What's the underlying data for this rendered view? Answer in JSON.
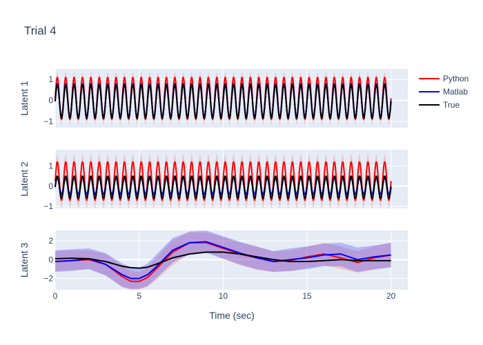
{
  "chart_data": {
    "type": "line",
    "title": "Trial 4",
    "xlabel": "Time (sec)",
    "xlim": [
      0,
      21
    ],
    "xticks": [
      0,
      5,
      10,
      15,
      20
    ],
    "legend": {
      "placement": "top-right",
      "entries": [
        {
          "name": "Python",
          "color": "#ff0000"
        },
        {
          "name": "Matlab",
          "color": "#0000ff"
        },
        {
          "name": "True",
          "color": "#000000"
        }
      ]
    },
    "colors": {
      "plot_bg": "#e5ecf6",
      "grid": "#ffffff",
      "python_band": "rgba(255,0,0,0.15)",
      "matlab_band": "rgba(0,0,255,0.22)"
    },
    "subplots": [
      {
        "ylabel": "Latent 1",
        "ylim": [
          -1.3,
          1.5
        ],
        "yticks": [
          -1,
          0,
          1
        ],
        "x_range": [
          0,
          20
        ],
        "series": [
          {
            "name": "Python",
            "kind": "sinusoid",
            "frequency_hz": 2.0,
            "amplitude": 1.0,
            "offset": 0.1,
            "band": 0.25
          },
          {
            "name": "Matlab",
            "kind": "sinusoid",
            "frequency_hz": 2.0,
            "amplitude": 0.8,
            "offset": 0.0
          },
          {
            "name": "True",
            "kind": "sinusoid",
            "frequency_hz": 2.0,
            "amplitude": 0.8,
            "offset": -0.05
          }
        ]
      },
      {
        "ylabel": "Latent 2",
        "ylim": [
          -1.1,
          1.8
        ],
        "yticks": [
          -1,
          0,
          1
        ],
        "x_range": [
          0,
          20
        ],
        "series": [
          {
            "name": "Python",
            "kind": "sinusoid",
            "frequency_hz": 2.0,
            "amplitude": 0.95,
            "offset": 0.25,
            "band": 0.4
          },
          {
            "name": "Matlab",
            "kind": "sinusoid",
            "frequency_hz": 2.0,
            "amplitude": 0.4,
            "offset": 0.0
          },
          {
            "name": "True",
            "kind": "sinusoid",
            "frequency_hz": 2.0,
            "amplitude": 0.55,
            "offset": -0.05
          }
        ]
      },
      {
        "ylabel": "Latent 3",
        "ylim": [
          -3.2,
          3.1
        ],
        "yticks": [
          -2,
          0,
          2
        ],
        "x": [
          0,
          1,
          2,
          3,
          4,
          4.5,
          5,
          5.5,
          6,
          7,
          8,
          9,
          10,
          11,
          12,
          13,
          14,
          15,
          16,
          17,
          18,
          19,
          20
        ],
        "series": [
          {
            "name": "Python",
            "values": [
              -0.2,
              -0.1,
              0.0,
              -0.5,
              -1.8,
              -2.3,
              -2.3,
              -1.9,
              -1.0,
              0.8,
              1.8,
              1.8,
              1.2,
              0.6,
              0.2,
              -0.2,
              -0.1,
              0.3,
              0.6,
              0.2,
              -0.3,
              0.2,
              0.5
            ],
            "band_low": [
              -1.2,
              -1.1,
              -1.0,
              -1.6,
              -2.9,
              -3.2,
              -3.2,
              -2.9,
              -2.2,
              -0.6,
              0.6,
              0.9,
              0.1,
              -0.6,
              -1.1,
              -1.3,
              -1.2,
              -0.9,
              -0.6,
              -1.0,
              -1.4,
              -1.1,
              -0.8
            ],
            "band_high": [
              0.9,
              1.0,
              1.0,
              0.6,
              -0.6,
              -1.2,
              -1.3,
              -0.8,
              0.2,
              2.1,
              2.9,
              2.9,
              2.4,
              1.8,
              1.4,
              0.9,
              1.0,
              1.4,
              1.8,
              1.4,
              0.9,
              1.4,
              1.8
            ]
          },
          {
            "name": "Matlab",
            "values": [
              -0.2,
              -0.1,
              0.1,
              -0.5,
              -1.6,
              -2.0,
              -2.0,
              -1.6,
              -0.8,
              1.0,
              1.8,
              1.9,
              1.3,
              0.7,
              0.2,
              -0.2,
              0.0,
              0.2,
              0.5,
              0.6,
              0.0,
              0.3,
              0.5
            ],
            "band_low": [
              -1.3,
              -1.2,
              -1.0,
              -1.7,
              -2.9,
              -3.1,
              -3.1,
              -2.8,
              -2.0,
              -0.3,
              0.6,
              0.7,
              0.1,
              -0.5,
              -1.0,
              -1.3,
              -1.2,
              -1.0,
              -0.7,
              -0.7,
              -1.3,
              -1.0,
              -0.8
            ],
            "band_high": [
              1.0,
              1.1,
              1.2,
              0.7,
              -0.4,
              -0.8,
              -0.9,
              -0.4,
              0.5,
              2.3,
              3.0,
              3.1,
              2.5,
              1.9,
              1.4,
              0.9,
              1.2,
              1.4,
              1.7,
              1.8,
              1.3,
              1.5,
              1.8
            ]
          },
          {
            "name": "True",
            "values": [
              0.1,
              0.15,
              0.1,
              -0.2,
              -0.7,
              -0.85,
              -0.9,
              -0.8,
              -0.5,
              0.2,
              0.6,
              0.8,
              0.8,
              0.6,
              0.3,
              0.0,
              -0.2,
              -0.2,
              -0.1,
              0.0,
              -0.1,
              -0.1,
              -0.1
            ]
          }
        ]
      }
    ]
  }
}
